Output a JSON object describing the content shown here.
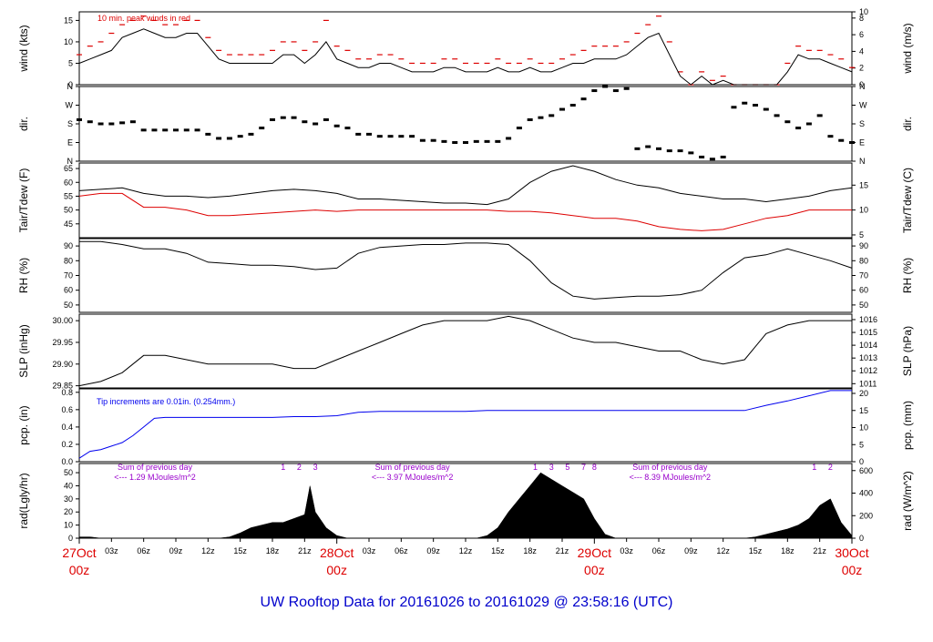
{
  "title": "UW Rooftop Data for 20161026  to  20161029 @ 23:58:16  (UTC)",
  "colors": {
    "black": "#000000",
    "red": "#dd0000",
    "blue": "#0000ee",
    "purple": "#9900cc",
    "title": "#0000cc"
  },
  "time_axis": {
    "minor_ticks": [
      "03z",
      "06z",
      "09z",
      "12z",
      "15z",
      "18z",
      "21z",
      "00z",
      "03z",
      "06z",
      "09z",
      "12z",
      "15z",
      "18z",
      "21z",
      "00z",
      "03z",
      "06z",
      "09z",
      "12z",
      "15z",
      "18z",
      "21z"
    ],
    "minor_hours": [
      3,
      6,
      9,
      12,
      15,
      18,
      21,
      24,
      27,
      30,
      33,
      36,
      39,
      42,
      45,
      48,
      51,
      54,
      57,
      60,
      63,
      66,
      69
    ],
    "day_labels": [
      {
        "date": "27Oct",
        "hour": "00z",
        "t": 0
      },
      {
        "date": "28Oct",
        "hour": "00z",
        "t": 24
      },
      {
        "date": "29Oct",
        "hour": "00z",
        "t": 48
      },
      {
        "date": "30Oct",
        "hour": "00z",
        "t": 72
      }
    ]
  },
  "chart_data": [
    {
      "type": "line",
      "ylabel_left": "wind (kts)",
      "ylabel_right": "wind (m/s)",
      "annotation": "10 min. peak winds in red",
      "ylim": [
        0,
        17
      ],
      "yticks": [
        0,
        5,
        10,
        15
      ],
      "right_ylim": [
        0,
        8.75
      ],
      "right_yticks": [
        0,
        2,
        4,
        6,
        8,
        10
      ],
      "series": [
        {
          "name": "wind",
          "color": "#000000",
          "x": [
            0,
            1,
            2,
            3,
            4,
            5,
            6,
            7,
            8,
            9,
            10,
            11,
            12,
            13,
            14,
            15,
            16,
            17,
            18,
            19,
            20,
            21,
            22,
            23,
            24,
            25,
            26,
            27,
            28,
            29,
            30,
            31,
            32,
            33,
            34,
            35,
            36,
            37,
            38,
            39,
            40,
            41,
            42,
            43,
            44,
            45,
            46,
            47,
            48,
            49,
            50,
            51,
            52,
            53,
            54,
            55,
            56,
            57,
            58,
            59,
            60,
            61,
            62,
            63,
            64,
            65,
            66,
            67,
            68,
            69,
            70,
            71,
            72
          ],
          "y": [
            5,
            6,
            7,
            8,
            11,
            12,
            13,
            12,
            11,
            11,
            12,
            12,
            9,
            6,
            5,
            5,
            5,
            5,
            5,
            7,
            7,
            5,
            7,
            10,
            6,
            5,
            4,
            4,
            5,
            5,
            4,
            3,
            3,
            3,
            4,
            4,
            3,
            3,
            3,
            4,
            3,
            3,
            4,
            3,
            3,
            4,
            5,
            5,
            6,
            6,
            6,
            7,
            9,
            11,
            12,
            7,
            2,
            0,
            2,
            0,
            1,
            0,
            0,
            0,
            0,
            0,
            3,
            7,
            6,
            6,
            5,
            4,
            3
          ]
        },
        {
          "name": "peak",
          "color": "#dd0000",
          "x": [
            0,
            1,
            2,
            3,
            4,
            5,
            6,
            7,
            8,
            9,
            10,
            11,
            12,
            13,
            14,
            15,
            16,
            17,
            18,
            19,
            20,
            21,
            22,
            23,
            24,
            25,
            26,
            27,
            28,
            29,
            30,
            31,
            32,
            33,
            34,
            35,
            36,
            37,
            38,
            39,
            40,
            41,
            42,
            43,
            44,
            45,
            46,
            47,
            48,
            49,
            50,
            51,
            52,
            53,
            54,
            55,
            56,
            57,
            58,
            59,
            60,
            61,
            62,
            63,
            64,
            65,
            66,
            67,
            68,
            69,
            70,
            71,
            72
          ],
          "y": [
            7,
            9,
            10,
            12,
            14,
            15,
            16,
            15,
            14,
            14,
            15,
            15,
            11,
            8,
            7,
            7,
            7,
            7,
            8,
            10,
            10,
            8,
            10,
            15,
            9,
            8,
            6,
            6,
            7,
            7,
            6,
            5,
            5,
            5,
            6,
            6,
            5,
            5,
            5,
            6,
            5,
            5,
            6,
            5,
            5,
            6,
            7,
            8,
            9,
            9,
            9,
            10,
            12,
            14,
            16,
            10,
            3,
            0,
            3,
            1,
            2,
            0,
            0,
            0,
            0,
            0,
            5,
            9,
            8,
            8,
            7,
            6,
            4
          ]
        }
      ]
    },
    {
      "type": "scatter",
      "ylabel_left": "dir.",
      "ylabel_right": "dir.",
      "ylim": [
        0,
        360
      ],
      "yticks_labels": [
        "N",
        "E",
        "S",
        "W",
        "N"
      ],
      "yticks_values": [
        0,
        90,
        180,
        270,
        360
      ],
      "x": [
        0,
        1,
        2,
        3,
        4,
        5,
        6,
        7,
        8,
        9,
        10,
        11,
        12,
        13,
        14,
        15,
        16,
        17,
        18,
        19,
        20,
        21,
        22,
        23,
        24,
        25,
        26,
        27,
        28,
        29,
        30,
        31,
        32,
        33,
        34,
        35,
        36,
        37,
        38,
        39,
        40,
        41,
        42,
        43,
        44,
        45,
        46,
        47,
        48,
        49,
        50,
        51,
        52,
        53,
        54,
        55,
        56,
        57,
        58,
        59,
        60,
        61,
        62,
        63,
        64,
        65,
        66,
        67,
        68,
        69,
        70,
        71,
        72
      ],
      "y": [
        200,
        190,
        180,
        180,
        185,
        190,
        150,
        150,
        150,
        150,
        150,
        150,
        130,
        110,
        110,
        120,
        130,
        160,
        200,
        210,
        210,
        190,
        180,
        200,
        170,
        160,
        130,
        130,
        120,
        120,
        120,
        120,
        100,
        100,
        95,
        90,
        90,
        95,
        95,
        95,
        110,
        160,
        200,
        210,
        220,
        250,
        270,
        300,
        340,
        360,
        340,
        350,
        60,
        70,
        60,
        50,
        50,
        40,
        20,
        10,
        20,
        260,
        280,
        270,
        250,
        220,
        190,
        160,
        180,
        220,
        120,
        100,
        90
      ]
    },
    {
      "type": "line",
      "ylabel_left": "Tair/Tdew (F)",
      "ylabel_right": "Tair/Tdew (C)",
      "ylim": [
        40,
        67
      ],
      "yticks": [
        45,
        50,
        55,
        60,
        65
      ],
      "right_yticks": [
        5,
        10,
        15
      ],
      "series": [
        {
          "name": "Tair",
          "color": "#000000",
          "x": [
            0,
            2,
            4,
            6,
            8,
            10,
            12,
            14,
            16,
            18,
            20,
            22,
            24,
            26,
            28,
            30,
            32,
            34,
            36,
            38,
            40,
            42,
            44,
            46,
            48,
            50,
            52,
            54,
            56,
            58,
            60,
            62,
            64,
            66,
            68,
            70,
            72
          ],
          "y": [
            57,
            57.5,
            58,
            56,
            55,
            55,
            54.5,
            55,
            56,
            57,
            57.5,
            57,
            56,
            54,
            54,
            53.5,
            53,
            52.5,
            52.5,
            52,
            54,
            60,
            64,
            66,
            64,
            61,
            59,
            58,
            56,
            55,
            54,
            54,
            53,
            54,
            55,
            57,
            58
          ]
        },
        {
          "name": "Tdew",
          "color": "#dd0000",
          "x": [
            0,
            2,
            4,
            6,
            8,
            10,
            12,
            14,
            16,
            18,
            20,
            22,
            24,
            26,
            28,
            30,
            32,
            34,
            36,
            38,
            40,
            42,
            44,
            46,
            48,
            50,
            52,
            54,
            56,
            58,
            60,
            62,
            64,
            66,
            68,
            70,
            72
          ],
          "y": [
            55,
            56,
            56,
            51,
            51,
            50,
            48,
            48,
            48.5,
            49,
            49.5,
            50,
            49.5,
            50,
            50,
            50,
            50,
            50,
            50,
            50,
            49.5,
            49.5,
            49,
            48,
            47,
            47,
            46,
            44,
            43,
            42.5,
            43,
            45,
            47,
            48,
            50,
            50,
            50
          ]
        }
      ]
    },
    {
      "type": "line",
      "ylabel_left": "RH (%)",
      "ylabel_right": "RH (%)",
      "ylim": [
        45,
        95
      ],
      "yticks": [
        50,
        60,
        70,
        80,
        90
      ],
      "series": [
        {
          "name": "RH",
          "color": "#000000",
          "x": [
            0,
            2,
            4,
            6,
            8,
            10,
            12,
            14,
            16,
            18,
            20,
            22,
            24,
            26,
            28,
            30,
            32,
            34,
            36,
            38,
            40,
            42,
            44,
            46,
            48,
            50,
            52,
            54,
            56,
            58,
            60,
            62,
            64,
            66,
            68,
            70,
            72
          ],
          "y": [
            93,
            93,
            91,
            88,
            88,
            85,
            79,
            78,
            77,
            77,
            76,
            74,
            75,
            85,
            89,
            90,
            91,
            91,
            92,
            92,
            91,
            80,
            65,
            56,
            54,
            55,
            56,
            56,
            57,
            60,
            72,
            82,
            84,
            88,
            84,
            80,
            75
          ]
        }
      ]
    },
    {
      "type": "line",
      "ylabel_left": "SLP (inHg)",
      "ylabel_right": "SLP (hPa)",
      "ylim": [
        29.845,
        30.015
      ],
      "yticks": [
        29.85,
        29.9,
        29.95,
        30.0
      ],
      "right_yticks": [
        1011,
        1012,
        1013,
        1014,
        1015,
        1016
      ],
      "series": [
        {
          "name": "SLP",
          "color": "#000000",
          "x": [
            0,
            2,
            4,
            6,
            8,
            10,
            12,
            14,
            16,
            18,
            20,
            22,
            24,
            26,
            28,
            30,
            32,
            34,
            36,
            38,
            40,
            42,
            44,
            46,
            48,
            50,
            52,
            54,
            56,
            58,
            60,
            62,
            64,
            66,
            68,
            70,
            72
          ],
          "y": [
            29.85,
            29.86,
            29.88,
            29.92,
            29.92,
            29.91,
            29.9,
            29.9,
            29.9,
            29.9,
            29.89,
            29.89,
            29.91,
            29.93,
            29.95,
            29.97,
            29.99,
            30.0,
            30.0,
            30.0,
            30.01,
            30.0,
            29.98,
            29.96,
            29.95,
            29.95,
            29.94,
            29.93,
            29.93,
            29.91,
            29.9,
            29.91,
            29.97,
            29.99,
            30.0,
            30.0,
            30.0
          ]
        }
      ]
    },
    {
      "type": "line",
      "ylabel_left": "pcp. (in)",
      "ylabel_right": "pcp. (mm)",
      "annotation": "Tip increments are 0.01in. (0.254mm.)",
      "ylim": [
        0,
        0.84
      ],
      "yticks": [
        0,
        0.2,
        0.4,
        0.6,
        0.8
      ],
      "right_yticks": [
        0,
        5,
        10,
        15,
        20
      ],
      "series": [
        {
          "name": "pcp",
          "color": "#0000ee",
          "x": [
            0,
            1,
            2,
            3,
            4,
            5,
            6,
            7,
            8,
            10,
            12,
            14,
            16,
            18,
            20,
            22,
            24,
            26,
            28,
            30,
            32,
            34,
            36,
            38,
            40,
            42,
            44,
            46,
            48,
            50,
            52,
            54,
            56,
            58,
            60,
            62,
            64,
            66,
            68,
            70,
            72
          ],
          "y": [
            0.04,
            0.12,
            0.14,
            0.18,
            0.22,
            0.3,
            0.4,
            0.5,
            0.51,
            0.51,
            0.51,
            0.51,
            0.51,
            0.51,
            0.52,
            0.52,
            0.53,
            0.57,
            0.58,
            0.58,
            0.58,
            0.58,
            0.58,
            0.59,
            0.59,
            0.59,
            0.59,
            0.59,
            0.59,
            0.59,
            0.59,
            0.59,
            0.59,
            0.59,
            0.59,
            0.59,
            0.65,
            0.7,
            0.76,
            0.82,
            0.82
          ]
        }
      ]
    },
    {
      "type": "area",
      "ylabel_left": "rad(Lgly/hr)",
      "ylabel_right": "rad (W/m^2)",
      "ylim": [
        0,
        57
      ],
      "yticks": [
        0,
        10,
        20,
        30,
        40,
        50
      ],
      "right_yticks": [
        0,
        200,
        400,
        600
      ],
      "annotations": [
        {
          "line1": "Sum of previous day",
          "line2": "<--- 1.29 MJoules/m^2",
          "t": 0
        },
        {
          "line1": "Sum of previous day",
          "line2": "<--- 3.97 MJoules/m^2",
          "t": 24
        },
        {
          "line1": "Sum of previous day",
          "line2": "<--- 8.39 MJoules/m^2",
          "t": 48
        }
      ],
      "markers": [
        {
          "label": "1",
          "t": 19
        },
        {
          "label": "2",
          "t": 20.5
        },
        {
          "label": "3",
          "t": 22
        },
        {
          "label": "1",
          "t": 42.5
        },
        {
          "label": "3",
          "t": 44
        },
        {
          "label": "5",
          "t": 45.5
        },
        {
          "label": "7",
          "t": 47
        },
        {
          "label": "8",
          "t": 48
        },
        {
          "label": "1",
          "t": 68.5
        },
        {
          "label": "2",
          "t": 70
        }
      ],
      "series": [
        {
          "name": "rad",
          "color": "#000000",
          "x": [
            0,
            1,
            2,
            3,
            13,
            14,
            15,
            16,
            17,
            18,
            19,
            20,
            21,
            21.5,
            22,
            23,
            24,
            25,
            37,
            38,
            39,
            40,
            41,
            42,
            43,
            44,
            45,
            46,
            47,
            48,
            49,
            50,
            62,
            63,
            64,
            65,
            66,
            67,
            68,
            69,
            70,
            71,
            72
          ],
          "y": [
            1,
            1,
            0,
            0,
            0,
            1,
            4,
            8,
            10,
            12,
            12,
            15,
            18,
            40,
            20,
            8,
            2,
            0,
            0,
            2,
            8,
            20,
            30,
            40,
            50,
            45,
            40,
            35,
            30,
            15,
            3,
            0,
            0,
            1,
            3,
            5,
            7,
            10,
            15,
            25,
            30,
            12,
            2
          ]
        }
      ]
    }
  ]
}
